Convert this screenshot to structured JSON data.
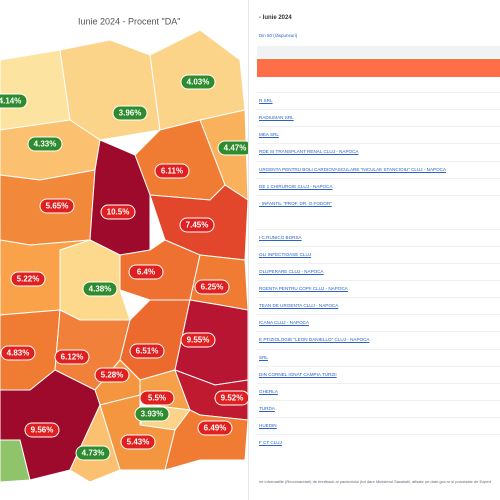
{
  "map": {
    "title": "Iunie 2024 - Procent \"DA\"",
    "regions": [
      {
        "label": "4.14%"
      },
      {
        "label": "3.96%"
      },
      {
        "label": "4.03%"
      },
      {
        "label": "4.33%"
      },
      {
        "label": "4.47%"
      },
      {
        "label": "6.11%"
      },
      {
        "label": "5.65%"
      },
      {
        "label": "10.5%"
      },
      {
        "label": "7.45%"
      },
      {
        "label": "5.22%"
      },
      {
        "label": "6.4%"
      },
      {
        "label": "4.38%"
      },
      {
        "label": "6.25%"
      },
      {
        "label": "4.83%"
      },
      {
        "label": "6.12%"
      },
      {
        "label": "6.51%"
      },
      {
        "label": "9.55%"
      },
      {
        "label": "5.28%"
      },
      {
        "label": "5.5%"
      },
      {
        "label": "9.52%"
      },
      {
        "label": "3.93%"
      },
      {
        "label": "9.56%"
      },
      {
        "label": "5.43%"
      },
      {
        "label": "6.49%"
      },
      {
        "label": "4.73%"
      }
    ]
  },
  "panel": {
    "title": "- Iunie 2024",
    "subtitle": "Din 50 (răspunsuri)",
    "items": [
      "R SRL",
      "RADIUMAN SRL",
      "MEA SRL",
      "RDE SI TRANSPLANT RENAL CLUJ - NAPOCA",
      "URGENTA PENTRU BOLI CARDIOVASCULARE \"NICULAE STANCIOIU\" CLUJ - NAPOCA",
      "DE 1 CHIRURGIE CLUJ - NAPOCA",
      "- INFANTIL \"PROF. DR. O.FODOR\"",
      "I C.RUNICO BORSA",
      "OLI INFECTIOASE CLUJ",
      "OLUPERARE CLUJ - NAPOCA",
      "RGENTA PENTRU COPII CLUJ - NAPOCA",
      "TEAN DE URGENTA CLUJ - NAPOCA",
      "ICANA CLUJ - NAPOCA",
      "E PTIZIOLOGIE \"LEON DANIELLO\" CLUJ - NAPOCA",
      "SRL",
      "DIN CORNEL IGNAT CAMPIA TURZII",
      "GHERLA",
      "TURDA",
      "HUEDIN",
      "F CT CLUJ"
    ],
    "footer": "ne informatiile (Recomandari) de feedback al pacientului (tot dare Ministerul Sanatatii, afisate pe date.gov.ro si procesate de Expert"
  }
}
